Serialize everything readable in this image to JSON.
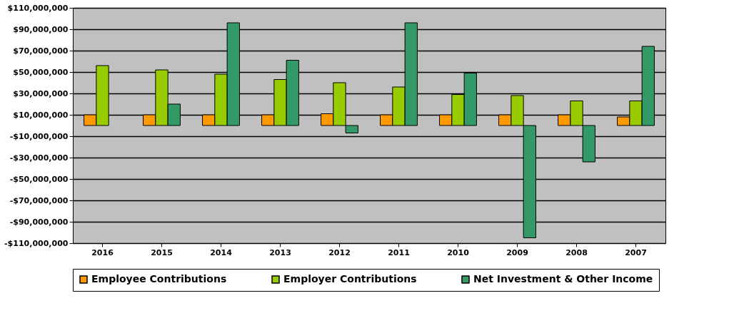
{
  "chart_data": {
    "type": "bar",
    "categories": [
      "2016",
      "2015",
      "2014",
      "2013",
      "2012",
      "2011",
      "2010",
      "2009",
      "2008",
      "2007"
    ],
    "series": [
      {
        "name": "Employee Contributions",
        "color": "#ff9900",
        "values": [
          10000000,
          10000000,
          10000000,
          10000000,
          11000000,
          10000000,
          10000000,
          10000000,
          10000000,
          8000000
        ]
      },
      {
        "name": "Employer Contributions",
        "color": "#99cc00",
        "values": [
          56000000,
          52000000,
          48000000,
          43000000,
          40000000,
          36000000,
          29000000,
          28000000,
          23000000,
          23000000
        ]
      },
      {
        "name": "Net Investment & Other Income",
        "color": "#339966",
        "values": [
          null,
          20000000,
          96000000,
          61000000,
          -7000000,
          96000000,
          49000000,
          -105000000,
          -34000000,
          74000000
        ]
      }
    ],
    "ylim": [
      -110000000,
      110000000
    ],
    "yticks": [
      {
        "value": 110000000,
        "label": "$110,000,000"
      },
      {
        "value": 90000000,
        "label": "$90,000,000"
      },
      {
        "value": 70000000,
        "label": "$70,000,000"
      },
      {
        "value": 50000000,
        "label": "$50,000,000"
      },
      {
        "value": 30000000,
        "label": "$30,000,000"
      },
      {
        "value": 10000000,
        "label": "$10,000,000"
      },
      {
        "value": -10000000,
        "label": "-$10,000,000"
      },
      {
        "value": -30000000,
        "label": "-$30,000,000"
      },
      {
        "value": -50000000,
        "label": "-$50,000,000"
      },
      {
        "value": -70000000,
        "label": "-$70,000,000"
      },
      {
        "value": -90000000,
        "label": "-$90,000,000"
      },
      {
        "value": -110000000,
        "label": "-$110,000,000"
      }
    ],
    "grid": "y",
    "legend": "bottom"
  }
}
